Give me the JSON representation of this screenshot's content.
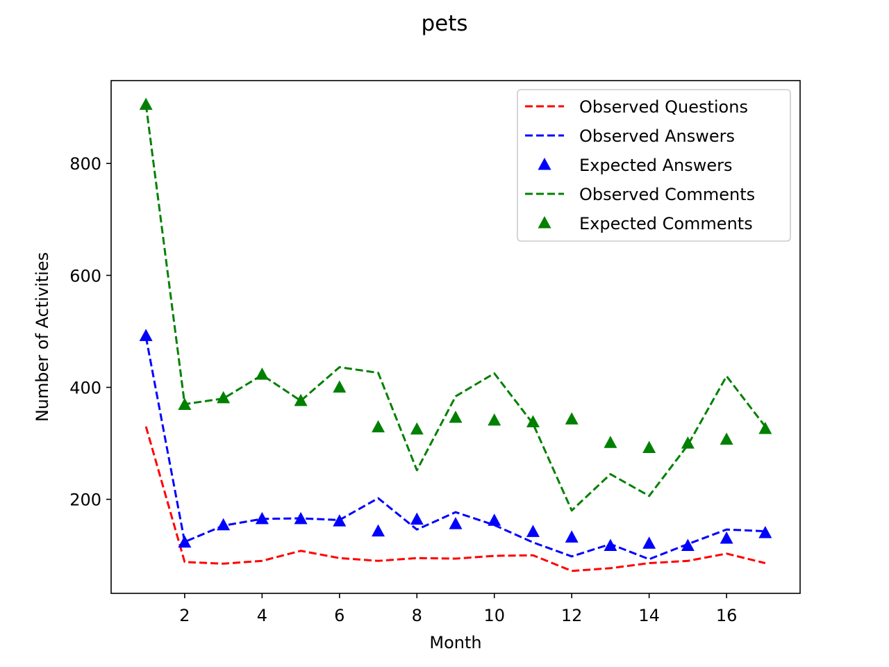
{
  "chart_data": {
    "type": "line",
    "title": "pets",
    "xlabel": "Month",
    "ylabel": "Number of Activities",
    "xlim": [
      0.1,
      17.9
    ],
    "ylim": [
      32,
      948
    ],
    "xticks": [
      2,
      4,
      6,
      8,
      10,
      12,
      14,
      16
    ],
    "xtick_labels": [
      "2",
      "4",
      "6",
      "8",
      "10",
      "12",
      "14",
      "16"
    ],
    "yticks": [
      200,
      400,
      600,
      800
    ],
    "ytick_labels": [
      "200",
      "400",
      "600",
      "800"
    ],
    "grid": false,
    "legend_position": "top-right",
    "x": [
      1,
      2,
      3,
      4,
      5,
      6,
      7,
      8,
      9,
      10,
      11,
      12,
      13,
      14,
      15,
      16,
      17
    ],
    "series": [
      {
        "name": "Observed Questions",
        "style": "dashed-line",
        "color": "#ff0000",
        "values": [
          330,
          88,
          85,
          90,
          108,
          95,
          90,
          95,
          94,
          99,
          100,
          72,
          77,
          86,
          90,
          103,
          86
        ]
      },
      {
        "name": "Observed Answers",
        "style": "dashed-line",
        "color": "#0000ff",
        "values": [
          490,
          124,
          153,
          165,
          166,
          163,
          202,
          146,
          177,
          154,
          123,
          98,
          120,
          93,
          120,
          146,
          143
        ]
      },
      {
        "name": "Expected Answers",
        "style": "triangle-markers",
        "color": "#0000ff",
        "values": [
          492,
          123,
          154,
          165,
          165,
          161,
          143,
          164,
          156,
          162,
          142,
          132,
          117,
          121,
          117,
          130,
          140
        ]
      },
      {
        "name": "Observed Comments",
        "style": "dashed-line",
        "color": "#008000",
        "values": [
          905,
          370,
          380,
          422,
          376,
          436,
          426,
          252,
          384,
          425,
          335,
          180,
          245,
          206,
          297,
          420,
          330
        ]
      },
      {
        "name": "Expected Comments",
        "style": "triangle-markers",
        "color": "#008000",
        "values": [
          905,
          369,
          381,
          423,
          376,
          400,
          329,
          325,
          346,
          341,
          338,
          343,
          301,
          292,
          300,
          307,
          326
        ]
      }
    ]
  }
}
